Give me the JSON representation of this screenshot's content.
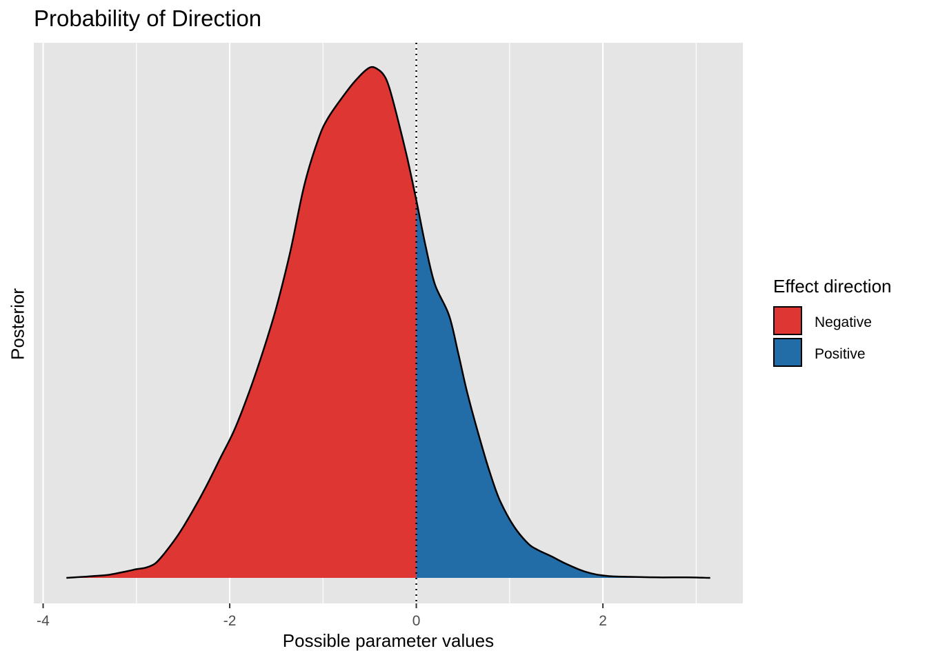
{
  "chart_data": {
    "type": "area",
    "title": "Probability of Direction",
    "xlabel": "Possible parameter values",
    "ylabel": "Posterior",
    "xlim": [
      -4.1,
      3.5
    ],
    "x_ticks": [
      -4,
      -2,
      0,
      2
    ],
    "x_tick_labels": [
      "-4",
      "-2",
      "0",
      "2"
    ],
    "grid": true,
    "reference_line": {
      "x": 0,
      "style": "dotted"
    },
    "legend": {
      "title": "Effect direction",
      "position": "right",
      "entries": [
        {
          "label": "Negative",
          "color": "#DE3632"
        },
        {
          "label": "Positive",
          "color": "#226CA8"
        }
      ]
    },
    "density": {
      "x": [
        -3.75,
        -3.5,
        -3.3,
        -3.1,
        -3.0,
        -2.9,
        -2.8,
        -2.7,
        -2.55,
        -2.4,
        -2.25,
        -2.1,
        -1.95,
        -1.8,
        -1.65,
        -1.5,
        -1.35,
        -1.2,
        -1.05,
        -0.95,
        -0.8,
        -0.65,
        -0.5,
        -0.4,
        -0.33,
        -0.28,
        -0.2,
        -0.1,
        0.0,
        0.1,
        0.2,
        0.35,
        0.45,
        0.55,
        0.7,
        0.8,
        0.9,
        1.05,
        1.2,
        1.3,
        1.45,
        1.6,
        1.75,
        1.85,
        1.95,
        2.1,
        2.3,
        2.6,
        2.9,
        3.15
      ],
      "y": [
        0.0,
        0.003,
        0.006,
        0.013,
        0.017,
        0.02,
        0.028,
        0.048,
        0.085,
        0.13,
        0.18,
        0.235,
        0.29,
        0.36,
        0.44,
        0.53,
        0.64,
        0.77,
        0.86,
        0.9,
        0.94,
        0.975,
        1.0,
        0.995,
        0.98,
        0.955,
        0.9,
        0.825,
        0.74,
        0.65,
        0.575,
        0.515,
        0.44,
        0.36,
        0.26,
        0.2,
        0.15,
        0.1,
        0.067,
        0.055,
        0.042,
        0.028,
        0.016,
        0.01,
        0.006,
        0.003,
        0.002,
        0.001,
        0.001,
        0.0
      ]
    }
  }
}
